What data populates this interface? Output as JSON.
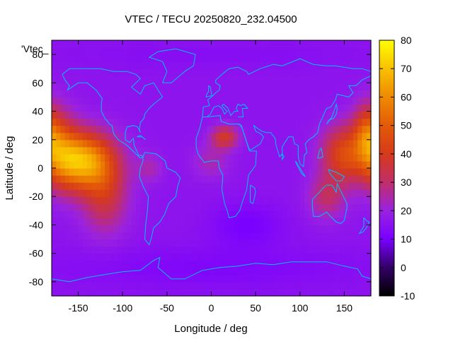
{
  "chart_data": {
    "type": "heatmap",
    "title": "VTEC / TECU 20250820_232.04500",
    "xlabel": "Longitude / deg",
    "ylabel": "Latitude / deg",
    "series_key_label": "'Vtec_",
    "xlim": [
      -180,
      180
    ],
    "ylim": [
      -90,
      90
    ],
    "x_ticks": [
      -150,
      -100,
      -50,
      0,
      50,
      100,
      150
    ],
    "y_ticks": [
      -80,
      -60,
      -40,
      -20,
      0,
      20,
      40,
      60,
      80
    ],
    "colorbar": {
      "range": [
        -10,
        80
      ],
      "ticks": [
        -10,
        0,
        10,
        20,
        30,
        40,
        50,
        60,
        70,
        80
      ],
      "stops": [
        {
          "value": -10,
          "color": "#000000"
        },
        {
          "value": 0,
          "color": "#330066"
        },
        {
          "value": 10,
          "color": "#7a00ff"
        },
        {
          "value": 20,
          "color": "#9a22e0"
        },
        {
          "value": 30,
          "color": "#c02e6a"
        },
        {
          "value": 40,
          "color": "#d63a1a"
        },
        {
          "value": 50,
          "color": "#e35a08"
        },
        {
          "value": 60,
          "color": "#ef8a00"
        },
        {
          "value": 70,
          "color": "#f8c000"
        },
        {
          "value": 80,
          "color": "#ffff00"
        }
      ]
    },
    "field": {
      "background": 16,
      "blobs": [
        {
          "lon": -145,
          "lat": 5,
          "rlon": 35,
          "rlat": 20,
          "amp": 50
        },
        {
          "lon": -120,
          "lat": -20,
          "rlon": 25,
          "rlat": 25,
          "amp": 18
        },
        {
          "lon": -170,
          "lat": 15,
          "rlon": 20,
          "rlat": 25,
          "amp": 20
        },
        {
          "lon": -70,
          "lat": 0,
          "rlon": 15,
          "rlat": 10,
          "amp": 8
        },
        {
          "lon": 15,
          "lat": 22,
          "rlon": 15,
          "rlat": 8,
          "amp": 22
        },
        {
          "lon": 0,
          "lat": 5,
          "rlon": 20,
          "rlat": 12,
          "amp": 8
        },
        {
          "lon": 150,
          "lat": 10,
          "rlon": 25,
          "rlat": 20,
          "amp": 28
        },
        {
          "lon": 175,
          "lat": 25,
          "rlon": 15,
          "rlat": 20,
          "amp": 24
        },
        {
          "lon": 130,
          "lat": -20,
          "rlon": 20,
          "rlat": 15,
          "amp": 14
        },
        {
          "lon": 40,
          "lat": -40,
          "rlon": 40,
          "rlat": 15,
          "amp": -6
        },
        {
          "lon": 0,
          "lat": -70,
          "rlon": 180,
          "rlat": 15,
          "amp": -4
        },
        {
          "lon": 0,
          "lat": 80,
          "rlon": 180,
          "rlat": 10,
          "amp": -2
        }
      ]
    },
    "coastline_color": "#00bfff"
  }
}
